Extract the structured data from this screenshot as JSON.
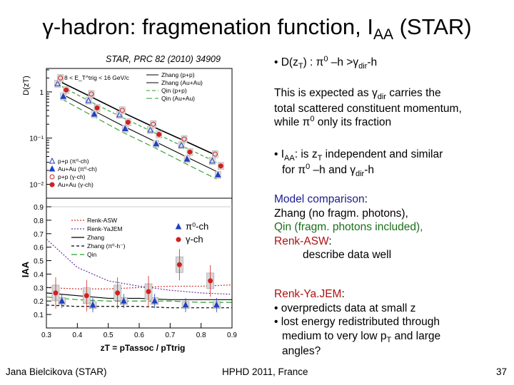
{
  "slide": {
    "title_prefix": "γ-hadron: fragmenation function, I",
    "title_sub": "AA",
    "title_suffix": " (STAR)",
    "citation": "STAR, PRC 82 (2010) 34909",
    "page_number": "37"
  },
  "footer": {
    "author": "Jana Bielcikova (STAR)",
    "conference": "HPHD 2011, France"
  },
  "text": {
    "b1_pre": "• D(z",
    "b1_T": "T",
    "b1_mid": ") : π",
    "b1_0": "0",
    "b1_mid2": " –h >γ",
    "b1_dir": "dir",
    "b1_end": "-h",
    "p1_line1": "This is expected as γ",
    "p1_line1_dir": "dir",
    "p1_line1_end": " carries the",
    "p1_line2": "total scattered constituent   momentum,",
    "p1_line3_pre": "while π",
    "p1_line3_0": "0",
    "p1_line3_end": " only its fraction",
    "b2_pre": "• I",
    "b2_AA": "AA",
    "b2_mid": ": is z",
    "b2_T": "T",
    "b2_end": " independent and similar",
    "b2_line2_pre": "for π",
    "b2_line2_0": "0",
    "b2_line2_mid": " –h  and γ",
    "b2_line2_dir": "dir",
    "b2_line2_end": "-h",
    "models_heading": "Model comparison",
    "models_colon": ":",
    "zhang_line": "Zhang (no fragm. photons),",
    "qin_line": "Qin (fragm. photons included),",
    "renk_asw": "Renk-ASW",
    "renk_asw_colon": ":",
    "describe_line": "describe  data well",
    "renk_yajem": "Renk-Ya.JEM",
    "renk_yajem_colon": ":",
    "yajem_1": "• overpredicts data at small z",
    "yajem_2": "• lost energy redistributed through",
    "yajem_3_pre": "medium to very low p",
    "yajem_3_T": "T",
    "yajem_3_end": " and large",
    "yajem_4": "angles?"
  },
  "chart_data": [
    {
      "type": "scatter",
      "ylabel": "D(z_T)",
      "ylim": [
        0.005,
        3
      ],
      "log_y": true,
      "y_tick_labels": [
        "1",
        "10⁻¹",
        "10⁻²"
      ],
      "annotation": "8 < E_T^trig < 16 GeV/c",
      "legend_models": [
        "Zhang (p+p)",
        "Zhang (Au+Au)",
        "Qin (p+p)",
        "Qin (Au+Au)"
      ],
      "legend_data": [
        "p+p (π⁰-ch)",
        "Au+Au (π⁰-ch)",
        "p+p (γ-ch)",
        "Au+Au (γ-ch)"
      ],
      "x": [
        0.35,
        0.45,
        0.55,
        0.65,
        0.75,
        0.85
      ],
      "series": [
        {
          "name": "p+p (π⁰-ch)",
          "values": [
            1.5,
            0.65,
            0.32,
            0.15,
            0.07,
            0.032
          ]
        },
        {
          "name": "Au+Au (π⁰-ch)",
          "values": [
            0.8,
            0.33,
            0.16,
            0.075,
            0.035,
            0.016
          ]
        },
        {
          "name": "p+p (γ-ch)",
          "values": [
            2.0,
            0.9,
            0.4,
            0.2,
            0.095,
            0.045
          ]
        },
        {
          "name": "Au+Au (γ-ch)",
          "values": [
            1.1,
            0.45,
            0.22,
            0.12,
            0.05,
            0.025
          ]
        }
      ],
      "model_curves": [
        {
          "name": "Zhang (p+p)",
          "values": [
            1.6,
            0.75,
            0.35,
            0.17,
            0.085,
            0.042
          ]
        },
        {
          "name": "Zhang (Au+Au)",
          "values": [
            0.9,
            0.4,
            0.18,
            0.085,
            0.04,
            0.019
          ]
        },
        {
          "name": "Qin (p+p)",
          "values": [
            1.3,
            0.58,
            0.27,
            0.13,
            0.062,
            0.03
          ]
        },
        {
          "name": "Qin (Au+Au)",
          "values": [
            0.7,
            0.3,
            0.13,
            0.062,
            0.028,
            0.013
          ]
        }
      ]
    },
    {
      "type": "scatter",
      "xlabel": "z_T = p_T^assoc / p_T^trig",
      "ylabel": "I_AA",
      "xlim": [
        0.3,
        0.9
      ],
      "ylim": [
        0,
        0.9
      ],
      "x_tick_labels": [
        "0.3",
        "0.4",
        "0.5",
        "0.6",
        "0.7",
        "0.8",
        "0.9"
      ],
      "y_tick_labels": [
        "0",
        "0.1",
        "0.2",
        "0.3",
        "0.4",
        "0.5",
        "0.6",
        "0.7",
        "0.8",
        "0.9"
      ],
      "legend_models": [
        "Renk-ASW",
        "Renk-YaJEM",
        "Zhang",
        "Zhang (π⁰-h⁻)",
        "Qin"
      ],
      "legend_data": [
        "π⁰-ch",
        "γ-ch"
      ],
      "series": [
        {
          "name": "π⁰-ch",
          "x": [
            0.35,
            0.45,
            0.55,
            0.65,
            0.75,
            0.85
          ],
          "values": [
            0.2,
            0.17,
            0.2,
            0.2,
            0.17,
            0.17
          ]
        },
        {
          "name": "γ-ch",
          "x": [
            0.33,
            0.43,
            0.53,
            0.63,
            0.73,
            0.83
          ],
          "values": [
            0.26,
            0.24,
            0.26,
            0.27,
            0.47,
            0.35
          ]
        }
      ],
      "model_curves": [
        {
          "name": "Renk-ASW",
          "x": [
            0.3,
            0.4,
            0.5,
            0.6,
            0.7,
            0.8,
            0.9
          ],
          "values": [
            0.3,
            0.29,
            0.29,
            0.3,
            0.31,
            0.31,
            0.32
          ]
        },
        {
          "name": "Renk-YaJEM",
          "x": [
            0.3,
            0.4,
            0.5,
            0.6,
            0.7,
            0.8,
            0.9
          ],
          "values": [
            0.66,
            0.45,
            0.35,
            0.31,
            0.28,
            0.26,
            0.25
          ]
        },
        {
          "name": "Zhang",
          "x": [
            0.3,
            0.4,
            0.5,
            0.6,
            0.7,
            0.8,
            0.9
          ],
          "values": [
            0.26,
            0.24,
            0.22,
            0.22,
            0.21,
            0.21,
            0.21
          ]
        },
        {
          "name": "Zhang (π⁰-h⁻)",
          "x": [
            0.3,
            0.4,
            0.5,
            0.6,
            0.7,
            0.8,
            0.9
          ],
          "values": [
            0.17,
            0.16,
            0.16,
            0.16,
            0.15,
            0.15,
            0.15
          ]
        },
        {
          "name": "Qin",
          "x": [
            0.3,
            0.4,
            0.5,
            0.6,
            0.7,
            0.8,
            0.9
          ],
          "values": [
            0.23,
            0.21,
            0.2,
            0.2,
            0.2,
            0.19,
            0.19
          ]
        }
      ]
    }
  ]
}
